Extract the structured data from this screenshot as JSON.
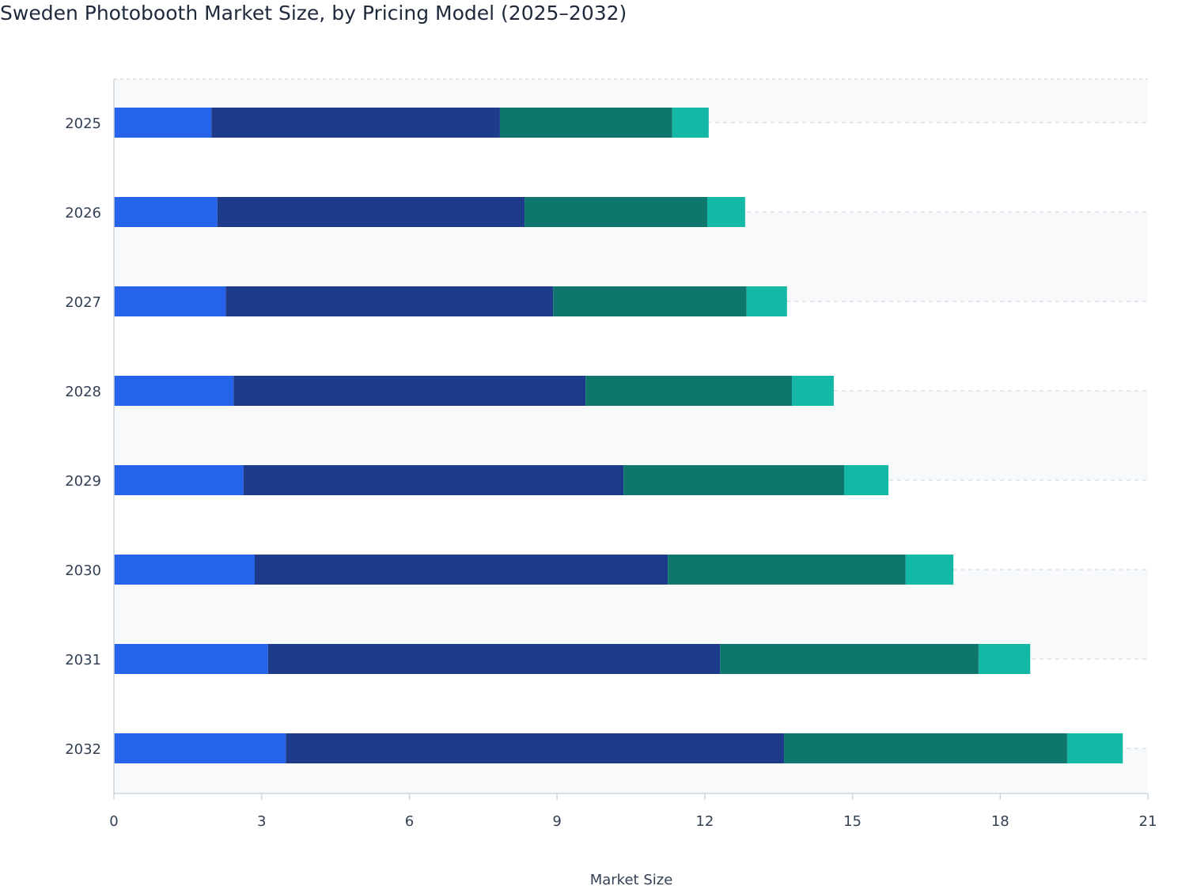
{
  "chart_data": {
    "type": "stacked-bar-horizontal",
    "title": "Sweden Photobooth Market Size, by Pricing Model (2025–2032)",
    "x_label": "Market Size",
    "categories": [
      "2025",
      "2026",
      "2027",
      "2028",
      "2029",
      "2030",
      "2031",
      "2032"
    ],
    "series": [
      {
        "color": "#2563eb",
        "values": [
          1.98,
          2.1,
          2.27,
          2.43,
          2.63,
          2.86,
          3.13,
          3.49
        ]
      },
      {
        "color": "#1e3a8a",
        "values": [
          5.86,
          6.24,
          6.65,
          7.15,
          7.72,
          8.39,
          9.18,
          10.12
        ]
      },
      {
        "color": "#0f766e",
        "values": [
          3.5,
          3.71,
          3.93,
          4.19,
          4.48,
          4.83,
          5.25,
          5.75
        ]
      },
      {
        "color": "#14b8a6",
        "values": [
          0.74,
          0.77,
          0.82,
          0.85,
          0.9,
          0.97,
          1.05,
          1.13
        ]
      }
    ],
    "xlim": [
      0,
      21
    ],
    "xticks": [
      0,
      3,
      6,
      9,
      12,
      15,
      18,
      21
    ],
    "grid": true
  }
}
